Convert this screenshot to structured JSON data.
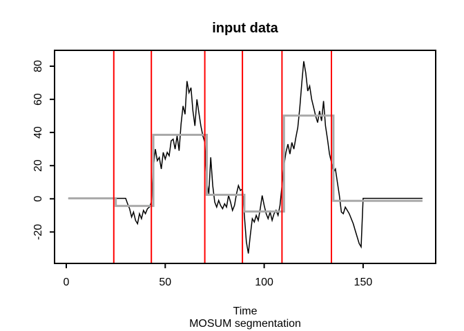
{
  "chart_data": {
    "type": "line",
    "title": "input data",
    "xlabel": "Time",
    "annotation": "MOSUM segmentation",
    "x_ticks": [
      0,
      50,
      100,
      150
    ],
    "y_ticks": [
      -20,
      0,
      20,
      40,
      60,
      80
    ],
    "xlim": [
      -5.9,
      186.6
    ],
    "ylim": [
      -39,
      89.6
    ],
    "n": 180,
    "grid": false,
    "legend": "none",
    "colors": {
      "data": "#000000",
      "segments": "#A9A9A9",
      "changepoints": "#FF0000"
    },
    "changepoints": [
      24,
      43,
      70,
      89,
      109,
      134
    ],
    "segments": [
      {
        "from": 1,
        "to": 25,
        "mean": 0.3
      },
      {
        "from": 25,
        "to": 44,
        "mean": -4.3
      },
      {
        "from": 44,
        "to": 71,
        "mean": 38.6
      },
      {
        "from": 71,
        "to": 90,
        "mean": 2.4
      },
      {
        "from": 90,
        "to": 110,
        "mean": -7.7
      },
      {
        "from": 110,
        "to": 135,
        "mean": 50.2
      },
      {
        "from": 135,
        "to": 180,
        "mean": -1.2
      }
    ],
    "series": [
      {
        "name": "input data",
        "x_start": 1,
        "values": [
          0.3,
          0.3,
          0.3,
          0.3,
          0.3,
          0.3,
          0.3,
          0.3,
          0.3,
          0.3,
          0.3,
          0.3,
          0.3,
          0.3,
          0.3,
          0.3,
          0.3,
          0.3,
          0.3,
          0.3,
          0.3,
          0.3,
          0.3,
          0.3,
          0.3,
          0.3,
          0.3,
          0.3,
          0.3,
          0.3,
          -3,
          -6,
          -11,
          -8,
          -13,
          -15,
          -9,
          -12,
          -7,
          -9,
          -6,
          -5,
          -2,
          19,
          30,
          23,
          25,
          18,
          28,
          24,
          28,
          26,
          35,
          36,
          30,
          38,
          29,
          45,
          56,
          51,
          71,
          64,
          67,
          53,
          44,
          60,
          52,
          44,
          38,
          34,
          10,
          3,
          25,
          8,
          -2,
          -5,
          -1,
          -4,
          -6,
          -3,
          -5,
          2,
          -2,
          -7,
          -4,
          3,
          8,
          5,
          6,
          -10,
          -26,
          -33,
          -22,
          -12,
          -14,
          -10,
          -13,
          -6,
          2,
          -4,
          -9,
          -12,
          -8,
          -13,
          -9,
          -7,
          -10,
          -4,
          8,
          20,
          28,
          33,
          27,
          34,
          30,
          37,
          43,
          55,
          70,
          83,
          76,
          65,
          68,
          60,
          55,
          50,
          46,
          53,
          47,
          59,
          44,
          36,
          27,
          22,
          16,
          18,
          10,
          2,
          -8,
          -9,
          -5,
          -7,
          -9,
          -12,
          -15,
          -19,
          -23,
          -27,
          -29,
          0.3,
          0.3,
          0.3,
          0.3,
          0.3,
          0.3,
          0.3,
          0.3,
          0.3,
          0.3,
          0.3,
          0.3,
          0.3,
          0.3,
          0.3,
          0.3,
          0.3,
          0.3,
          0.3,
          0.3,
          0.3,
          0.3,
          0.3,
          0.3,
          0.3,
          0.3,
          0.3,
          0.3,
          0.3,
          0.3,
          0.3
        ]
      }
    ]
  }
}
